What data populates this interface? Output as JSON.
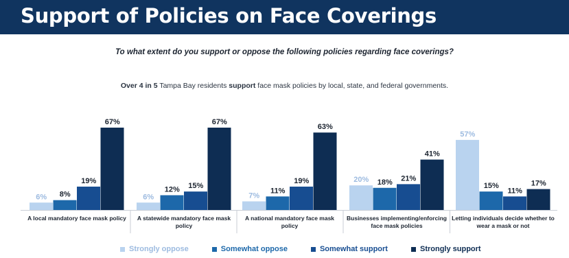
{
  "header": {
    "title": "Support of Policies on Face Coverings"
  },
  "question": "To what extent do you support or oppose the following policies regarding face coverings?",
  "subtitle": {
    "lead": "Over 4 in 5",
    "mid1": " Tampa Bay residents ",
    "bold": "support",
    "rest": " face mask policies by local, state, and federal governments."
  },
  "colors": {
    "title_bar": "#10345f",
    "strongly_oppose": "#b9d3ef",
    "somewhat_oppose": "#1d68aa",
    "somewhat_support": "#174d91",
    "strongly_support": "#0e2d53"
  },
  "chart_data": {
    "type": "bar",
    "categories": [
      [
        "A local mandatory face mask policy"
      ],
      [
        "A statewide mandatory face mask",
        "policy"
      ],
      [
        "A national mandatory face mask",
        "policy"
      ],
      [
        "Businesses implementing/enforcing",
        "face mask policies"
      ],
      [
        "Letting individuals decide whether to",
        "wear a mask or not"
      ]
    ],
    "series": [
      {
        "name": "Strongly oppose",
        "values": [
          6,
          6,
          7,
          20,
          57
        ]
      },
      {
        "name": "Somewhat oppose",
        "values": [
          8,
          12,
          11,
          18,
          15
        ]
      },
      {
        "name": "Somewhat support",
        "values": [
          19,
          15,
          19,
          21,
          11
        ]
      },
      {
        "name": "Strongly support",
        "values": [
          67,
          67,
          63,
          41,
          17
        ]
      }
    ],
    "value_suffix": "%",
    "ylim": [
      0,
      67
    ],
    "grid": false,
    "legend_position": "bottom"
  }
}
